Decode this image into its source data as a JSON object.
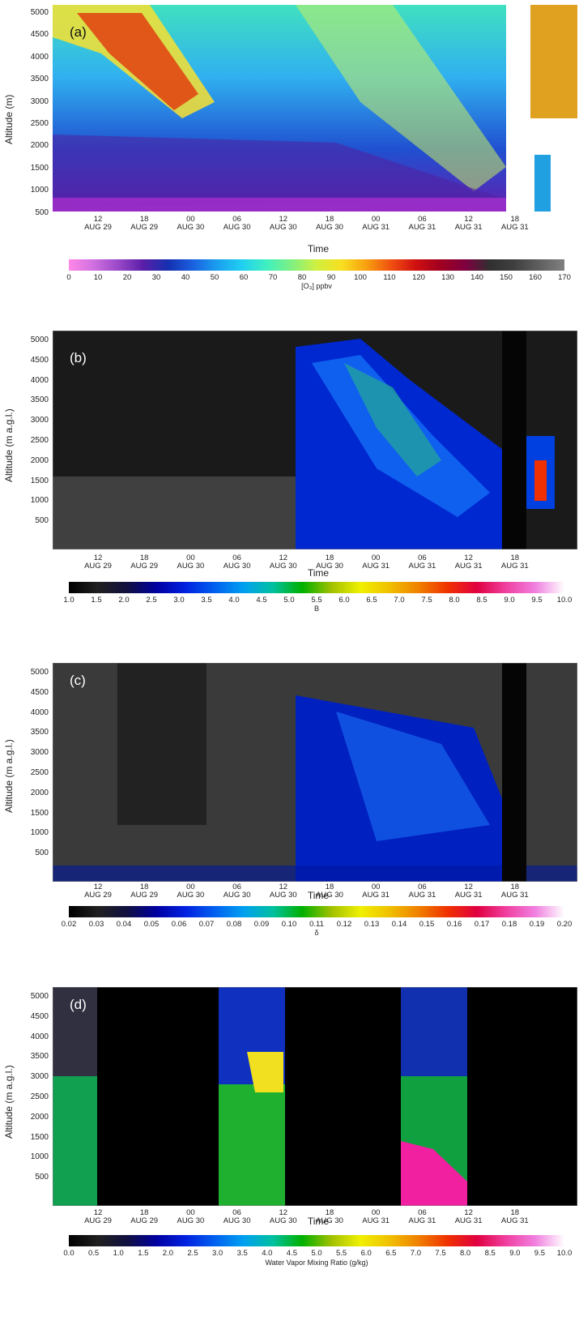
{
  "x_ticks": [
    {
      "hour": "12",
      "date": "AUG 29"
    },
    {
      "hour": "18",
      "date": "AUG 29"
    },
    {
      "hour": "00",
      "date": "AUG 30"
    },
    {
      "hour": "06",
      "date": "AUG 30"
    },
    {
      "hour": "12",
      "date": "AUG 30"
    },
    {
      "hour": "18",
      "date": "AUG 30"
    },
    {
      "hour": "00",
      "date": "AUG 31"
    },
    {
      "hour": "06",
      "date": "AUG 31"
    },
    {
      "hour": "12",
      "date": "AUG 31"
    },
    {
      "hour": "18",
      "date": "AUG 31"
    }
  ],
  "x_title": "Time",
  "y_ticks": [
    "5000",
    "4500",
    "4000",
    "3500",
    "3000",
    "2500",
    "2000",
    "1500",
    "1000",
    "500"
  ],
  "chart_data": [
    {
      "panel": "(a)",
      "type": "heatmap",
      "variable": "ozone",
      "ylabel": "Altitude (m)",
      "xlabel": "Time",
      "ylim": [
        450,
        5200
      ],
      "colorbar": {
        "label": "[O₃] ppbv",
        "range": [
          0,
          175
        ],
        "ticks": [
          "0",
          "10",
          "20",
          "30",
          "40",
          "50",
          "60",
          "70",
          "80",
          "90",
          "100",
          "110",
          "120",
          "130",
          "140",
          "150",
          "160",
          "170"
        ]
      },
      "stops": [
        "#ff88e8",
        "#cf70e0",
        "#9a48c8",
        "#5a1ea8",
        "#1530b0",
        "#1a60e0",
        "#1aa0f0",
        "#20d0f0",
        "#40f0c0",
        "#80f080",
        "#d0f040",
        "#f8e020",
        "#f8a010",
        "#f05010",
        "#d01010",
        "#a00020",
        "#800040",
        "#303030",
        "#404040",
        "#606060",
        "#808080"
      ]
    },
    {
      "panel": "(b)",
      "type": "heatmap",
      "variable": "B",
      "ylabel": "Altitude (m a.g.l.)",
      "xlabel": "Time",
      "ylim": [
        100,
        5200
      ],
      "colorbar": {
        "label": "B",
        "range": [
          1.0,
          10.0
        ],
        "ticks": [
          "1.0",
          "1.5",
          "2.0",
          "2.5",
          "3.0",
          "3.5",
          "4.0",
          "4.5",
          "5.0",
          "5.5",
          "6.0",
          "6.5",
          "7.0",
          "7.5",
          "8.0",
          "8.5",
          "9.0",
          "9.5",
          "10.0"
        ]
      },
      "stops": [
        "#000000",
        "#202020",
        "#101040",
        "#0000a0",
        "#0020e0",
        "#0060f0",
        "#00a0f0",
        "#00c0a0",
        "#00b000",
        "#a0c000",
        "#f0f000",
        "#f0c000",
        "#f08000",
        "#f03000",
        "#e00040",
        "#f040a0",
        "#f080e0",
        "#ffffff"
      ]
    },
    {
      "panel": "(c)",
      "type": "heatmap",
      "variable": "δ",
      "ylabel": "Altitude (m a.g.l.)",
      "xlabel": "Time",
      "ylim": [
        100,
        5200
      ],
      "colorbar": {
        "label": "δ",
        "range": [
          0.015,
          0.2
        ],
        "ticks": [
          "0.02",
          "0.03",
          "0.04",
          "0.05",
          "0.06",
          "0.07",
          "0.08",
          "0.09",
          "0.10",
          "0.11",
          "0.12",
          "0.13",
          "0.14",
          "0.15",
          "0.16",
          "0.17",
          "0.18",
          "0.19",
          "0.20"
        ]
      },
      "stops": [
        "#000000",
        "#202020",
        "#101040",
        "#0000a0",
        "#0020e0",
        "#0060f0",
        "#00a0f0",
        "#00c0a0",
        "#00b000",
        "#a0c000",
        "#f0f000",
        "#f0c000",
        "#f08000",
        "#f03000",
        "#e00040",
        "#f040a0",
        "#f080e0",
        "#ffffff"
      ]
    },
    {
      "panel": "(d)",
      "type": "heatmap",
      "variable": "water vapor mixing ratio",
      "ylabel": "Altitude (m a.g.l.)",
      "xlabel": "Time",
      "ylim": [
        100,
        5200
      ],
      "colorbar": {
        "label": "Water Vapor Mixing Ratio (g/kg)",
        "range": [
          0.0,
          10.0
        ],
        "ticks": [
          "0.0",
          "0.5",
          "1.0",
          "1.5",
          "2.0",
          "2.5",
          "3.0",
          "3.5",
          "4.0",
          "4.5",
          "5.0",
          "5.5",
          "6.0",
          "6.5",
          "7.0",
          "7.5",
          "8.0",
          "8.5",
          "9.0",
          "9.5",
          "10.0"
        ]
      },
      "stops": [
        "#000000",
        "#202020",
        "#101040",
        "#0000a0",
        "#0020e0",
        "#0060f0",
        "#00a0f0",
        "#00c0a0",
        "#00b000",
        "#a0c000",
        "#f0f000",
        "#f0c000",
        "#f08000",
        "#f03000",
        "#e00040",
        "#f040a0",
        "#f080e0",
        "#ffffff"
      ]
    }
  ]
}
